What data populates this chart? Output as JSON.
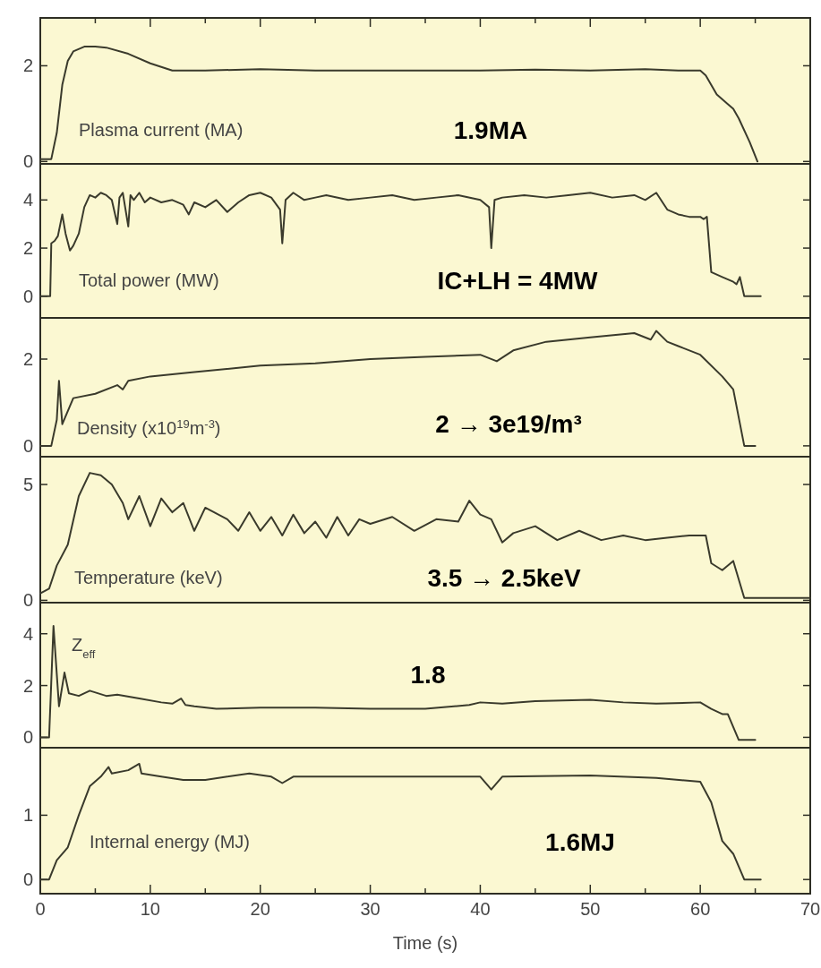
{
  "chart_data": [
    {
      "type": "line",
      "ylabel": "Plasma current (MA)",
      "annotations": [
        "1.9MA"
      ],
      "color": "#3a3a2c",
      "xlim": [
        0,
        70
      ],
      "xticks": [
        0,
        {
          "value": 5,
          "label": null
        },
        10,
        {
          "value": 15,
          "label": null
        },
        20,
        {
          "value": 25,
          "label": null
        },
        30,
        {
          "value": 35,
          "label": null
        },
        40,
        {
          "value": 45,
          "label": null
        },
        50,
        {
          "value": 55,
          "label": null
        },
        60,
        {
          "value": 65,
          "label": null
        },
        70
      ],
      "ylim": [
        -0.05,
        3
      ],
      "yticks": [
        0,
        2
      ],
      "tick_labels": "y",
      "grid": false,
      "x": [
        0,
        1,
        1.5,
        2,
        2.5,
        3,
        4,
        5,
        6,
        8,
        10,
        12,
        15,
        20,
        25,
        30,
        35,
        40,
        45,
        50,
        55,
        58,
        60,
        60.5,
        61.5,
        62.5,
        63,
        63.5,
        64.5,
        65.2
      ],
      "values": [
        0.05,
        0.05,
        0.6,
        1.6,
        2.1,
        2.3,
        2.4,
        2.4,
        2.38,
        2.25,
        2.05,
        1.9,
        1.9,
        1.93,
        1.9,
        1.9,
        1.9,
        1.9,
        1.92,
        1.9,
        1.93,
        1.9,
        1.9,
        1.8,
        1.4,
        1.2,
        1.1,
        0.9,
        0.4,
        0.0
      ]
    },
    {
      "type": "line",
      "ylabel": "Total power (MW)",
      "annotations": [
        "IC+LH = 4MW"
      ],
      "color": "#3a3a2c",
      "xlim": [
        0,
        70
      ],
      "ylim": [
        -0.9,
        5.5
      ],
      "yticks": [
        0,
        2,
        4
      ],
      "tick_labels": "y",
      "grid": false,
      "x": [
        0,
        0.9,
        1.0,
        1.3,
        1.6,
        2.0,
        2.3,
        2.7,
        3.0,
        3.5,
        4.0,
        4.5,
        5.0,
        5.5,
        6.0,
        6.5,
        7.0,
        7.2,
        7.5,
        8.0,
        8.2,
        8.5,
        9,
        9.5,
        10,
        11,
        12,
        13,
        13.5,
        14,
        15,
        16,
        17,
        18,
        19,
        20,
        21,
        21.8,
        22,
        22.3,
        23,
        24,
        25,
        26,
        28,
        30,
        32,
        34,
        36,
        38,
        40,
        40.8,
        41,
        41.3,
        42,
        44,
        46,
        48,
        50,
        52,
        54,
        55,
        56,
        57,
        58,
        59,
        60,
        60.3,
        60.6,
        61,
        62,
        63,
        63.3,
        63.6,
        64,
        65.5
      ],
      "values": [
        0,
        0,
        2.2,
        2.3,
        2.5,
        3.4,
        2.6,
        1.9,
        2.1,
        2.6,
        3.7,
        4.2,
        4.1,
        4.3,
        4.2,
        4.0,
        3.0,
        4.1,
        4.3,
        2.9,
        4.2,
        4.0,
        4.3,
        3.9,
        4.1,
        3.9,
        4.0,
        3.8,
        3.4,
        3.9,
        3.7,
        4.0,
        3.5,
        3.9,
        4.2,
        4.3,
        4.1,
        3.6,
        2.2,
        4.0,
        4.3,
        4.0,
        4.1,
        4.2,
        4.0,
        4.1,
        4.2,
        4.0,
        4.1,
        4.2,
        4.0,
        3.7,
        2.0,
        4.0,
        4.1,
        4.2,
        4.1,
        4.2,
        4.3,
        4.1,
        4.2,
        4.0,
        4.3,
        3.6,
        3.4,
        3.3,
        3.3,
        3.2,
        3.3,
        1.0,
        0.8,
        0.6,
        0.5,
        0.8,
        0.0,
        0.0
      ]
    },
    {
      "type": "line",
      "ylabel": "Density (x10$^{19}$m$^{-3}$)",
      "annotations": [
        "2 → 3e19/m³"
      ],
      "color": "#3a3a2c",
      "xlim": [
        0,
        70
      ],
      "ylim": [
        -0.25,
        2.95
      ],
      "yticks": [
        0,
        2
      ],
      "tick_labels": "y",
      "grid": false,
      "x": [
        0,
        1,
        1.5,
        1.7,
        2.0,
        3,
        5,
        7,
        7.5,
        8,
        10,
        14,
        20,
        25,
        30,
        35,
        40,
        41.5,
        43,
        46,
        50,
        54,
        55.5,
        56,
        57,
        58,
        60,
        62,
        63,
        64,
        65
      ],
      "values": [
        0,
        0,
        0.6,
        1.5,
        0.5,
        1.1,
        1.2,
        1.4,
        1.3,
        1.5,
        1.6,
        1.7,
        1.85,
        1.9,
        2.0,
        2.05,
        2.1,
        1.95,
        2.2,
        2.4,
        2.5,
        2.6,
        2.45,
        2.65,
        2.4,
        2.3,
        2.1,
        1.6,
        1.3,
        0,
        0
      ]
    },
    {
      "type": "line",
      "ylabel": "Temperature (keV)",
      "annotations": [
        "3.5 → 2.5keV"
      ],
      "color": "#3a3a2c",
      "xlim": [
        0,
        70
      ],
      "ylim": [
        -0.1,
        6.2
      ],
      "yticks": [
        0,
        5
      ],
      "tick_labels": "y",
      "grid": false,
      "x": [
        0,
        0.8,
        1.5,
        2.5,
        3.5,
        4.5,
        5.5,
        6.5,
        7.5,
        8,
        9,
        10,
        11,
        12,
        13,
        14,
        15,
        17,
        18,
        19,
        20,
        21,
        22,
        23,
        24,
        25,
        26,
        27,
        28,
        29,
        30,
        32,
        34,
        36,
        38,
        39,
        40,
        41,
        42,
        43,
        45,
        47,
        49,
        51,
        53,
        55,
        57,
        59,
        60.5,
        61,
        62,
        63,
        64,
        70
      ],
      "values": [
        0.3,
        0.5,
        1.5,
        2.4,
        4.5,
        5.5,
        5.4,
        5.0,
        4.2,
        3.5,
        4.5,
        3.2,
        4.4,
        3.8,
        4.2,
        3.0,
        4.0,
        3.5,
        3.0,
        3.8,
        3.0,
        3.6,
        2.8,
        3.7,
        2.9,
        3.4,
        2.7,
        3.6,
        2.8,
        3.5,
        3.3,
        3.6,
        3.0,
        3.5,
        3.4,
        4.3,
        3.7,
        3.5,
        2.5,
        2.9,
        3.2,
        2.6,
        3.0,
        2.6,
        2.8,
        2.6,
        2.7,
        2.8,
        2.8,
        1.6,
        1.3,
        1.7,
        0.1,
        0.1
      ]
    },
    {
      "type": "line",
      "ylabel": "Z$_{eff}$",
      "annotations": [
        "1.8"
      ],
      "color": "#3a3a2c",
      "xlim": [
        0,
        70
      ],
      "ylim": [
        -0.4,
        5.2
      ],
      "yticks": [
        0,
        2,
        4
      ],
      "tick_labels": "y",
      "grid": false,
      "x": [
        0,
        0.8,
        1.2,
        1.7,
        2.2,
        2.6,
        3.5,
        4.5,
        6,
        7,
        9,
        11,
        12,
        12.8,
        13.2,
        14,
        16,
        20,
        25,
        30,
        35,
        39,
        40,
        42,
        45,
        50,
        53,
        56,
        60,
        61,
        62,
        62.5,
        63.5,
        65
      ],
      "values": [
        0,
        0,
        4.3,
        1.2,
        2.5,
        1.7,
        1.6,
        1.8,
        1.6,
        1.65,
        1.5,
        1.35,
        1.3,
        1.5,
        1.25,
        1.2,
        1.1,
        1.15,
        1.15,
        1.1,
        1.1,
        1.25,
        1.35,
        1.3,
        1.4,
        1.45,
        1.35,
        1.3,
        1.35,
        1.1,
        0.9,
        0.9,
        -0.1,
        -0.1
      ]
    },
    {
      "type": "line",
      "ylabel": "Internal energy (MJ)",
      "xlabel": "Time (s)",
      "annotations": [
        "1.6MJ"
      ],
      "color": "#3a3a2c",
      "xlim": [
        0,
        70
      ],
      "xticks": [
        0,
        {
          "value": 5,
          "label": null
        },
        10,
        {
          "value": 15,
          "label": null
        },
        20,
        {
          "value": 25,
          "label": null
        },
        30,
        {
          "value": 35,
          "label": null
        },
        40,
        {
          "value": 45,
          "label": null
        },
        50,
        {
          "value": 55,
          "label": null
        },
        60,
        {
          "value": 65,
          "label": null
        },
        70
      ],
      "ylim": [
        -0.22,
        2.05
      ],
      "yticks": [
        0,
        1
      ],
      "grid": false,
      "x": [
        0,
        0.8,
        1.5,
        2.5,
        3.5,
        4.5,
        5.5,
        6.2,
        6.5,
        8,
        9,
        9.2,
        11,
        13,
        15,
        17,
        19,
        21,
        22,
        23,
        30,
        40,
        41,
        42,
        50,
        56,
        60,
        61,
        62,
        63,
        64,
        65.5
      ],
      "values": [
        0,
        0,
        0.3,
        0.5,
        1.0,
        1.45,
        1.6,
        1.75,
        1.65,
        1.7,
        1.8,
        1.65,
        1.6,
        1.55,
        1.55,
        1.6,
        1.65,
        1.6,
        1.5,
        1.6,
        1.6,
        1.6,
        1.4,
        1.6,
        1.62,
        1.58,
        1.52,
        1.2,
        0.6,
        0.4,
        0,
        0
      ]
    }
  ]
}
